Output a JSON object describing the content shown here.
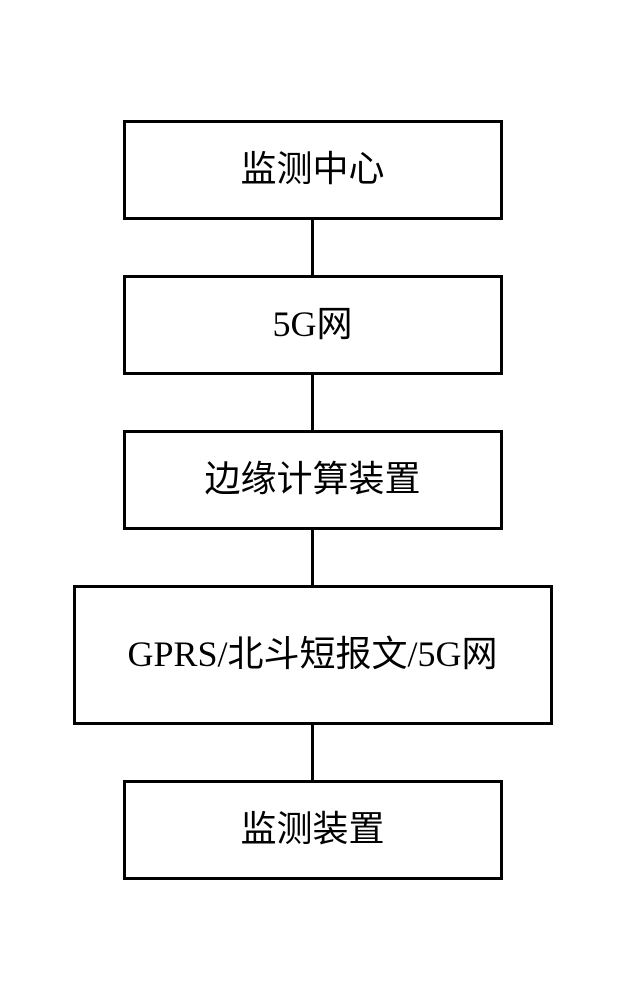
{
  "diagram": {
    "type": "flowchart",
    "direction": "vertical",
    "nodes": [
      {
        "id": "node1",
        "label": "监测中心",
        "border_color": "#000000",
        "border_width": 3,
        "background_color": "#ffffff",
        "text_color": "#000000",
        "font_size": 36
      },
      {
        "id": "node2",
        "label": "5G网",
        "border_color": "#000000",
        "border_width": 3,
        "background_color": "#ffffff",
        "text_color": "#000000",
        "font_size": 36
      },
      {
        "id": "node3",
        "label": "边缘计算装置",
        "border_color": "#000000",
        "border_width": 3,
        "background_color": "#ffffff",
        "text_color": "#000000",
        "font_size": 36
      },
      {
        "id": "node4",
        "label": "GPRS/北斗短报文/5G网",
        "border_color": "#000000",
        "border_width": 3,
        "background_color": "#ffffff",
        "text_color": "#000000",
        "font_size": 36
      },
      {
        "id": "node5",
        "label": "监测装置",
        "border_color": "#000000",
        "border_width": 3,
        "background_color": "#ffffff",
        "text_color": "#000000",
        "font_size": 36
      }
    ],
    "edges": [
      {
        "from": "node1",
        "to": "node2",
        "color": "#000000",
        "width": 3
      },
      {
        "from": "node2",
        "to": "node3",
        "color": "#000000",
        "width": 3
      },
      {
        "from": "node3",
        "to": "node4",
        "color": "#000000",
        "width": 3
      },
      {
        "from": "node4",
        "to": "node5",
        "color": "#000000",
        "width": 3
      }
    ],
    "background_color": "#ffffff",
    "connector_height": 55
  }
}
